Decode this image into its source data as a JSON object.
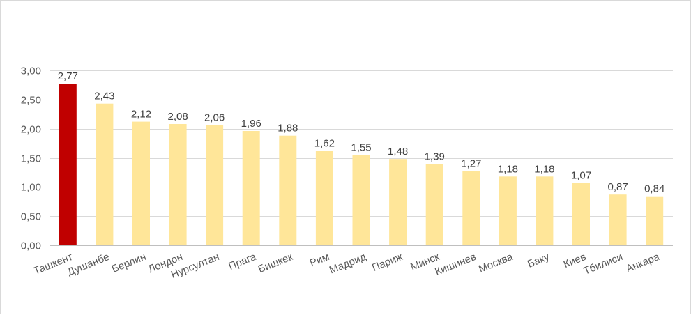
{
  "chart_data": {
    "type": "bar",
    "categories": [
      "Ташкент",
      "Душанбе",
      "Берлин",
      "Лондон",
      "Нурсултан",
      "Прага",
      "Бишкек",
      "Рим",
      "Мадрид",
      "Париж",
      "Минск",
      "Кишинев",
      "Москва",
      "Баку",
      "Киев",
      "Тбилиси",
      "Анкара"
    ],
    "values": [
      2.77,
      2.43,
      2.12,
      2.08,
      2.06,
      1.96,
      1.88,
      1.62,
      1.55,
      1.48,
      1.39,
      1.27,
      1.18,
      1.18,
      1.07,
      0.87,
      0.84
    ],
    "value_labels": [
      "2,77",
      "2,43",
      "2,12",
      "2,08",
      "2,06",
      "1,96",
      "1,88",
      "1,62",
      "1,55",
      "1,48",
      "1,39",
      "1,27",
      "1,18",
      "1,18",
      "1,07",
      "0,87",
      "0,84"
    ],
    "ylim": [
      0,
      3
    ],
    "y_ticks": [
      "0,00",
      "0,50",
      "1,00",
      "1,50",
      "2,00",
      "2,50",
      "3,00"
    ],
    "y_tick_values": [
      0,
      0.5,
      1,
      1.5,
      2,
      2.5,
      3
    ],
    "title": "",
    "xlabel": "",
    "ylabel": "",
    "grid": true,
    "legend": "none",
    "colors": {
      "highlight": "#c00000",
      "default": "#ffe699",
      "grid": "#d9d9d9",
      "axis": "#bfbfbf"
    },
    "highlight_index": 0
  }
}
